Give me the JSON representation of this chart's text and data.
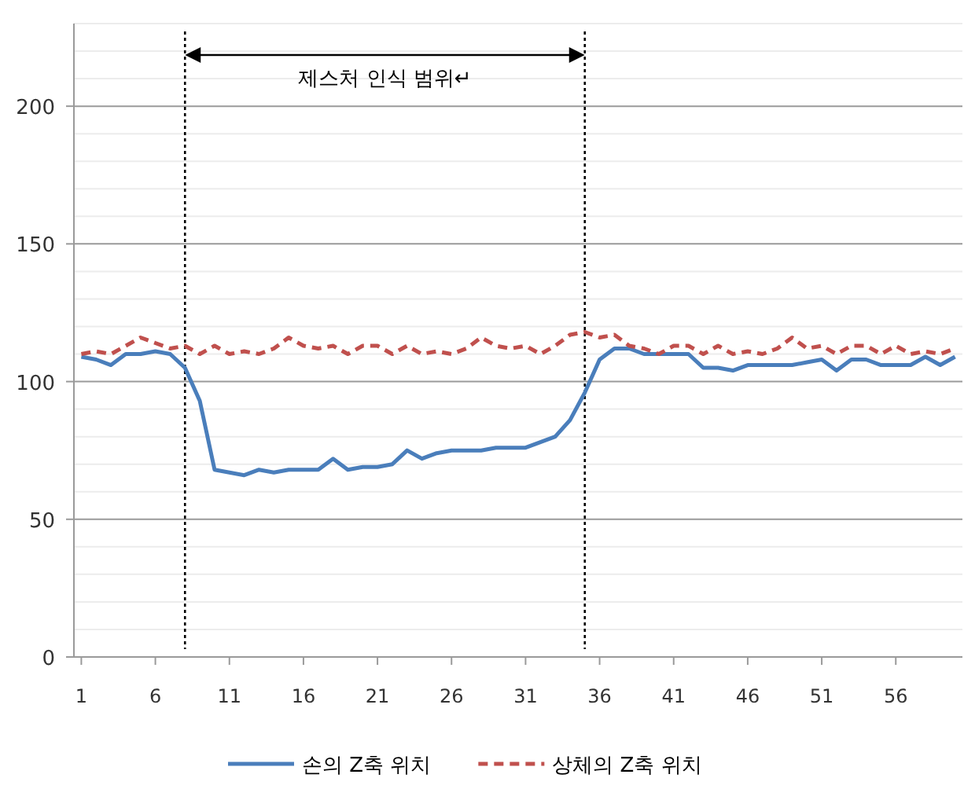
{
  "chart_data": {
    "type": "line",
    "x": [
      1,
      2,
      3,
      4,
      5,
      6,
      7,
      8,
      9,
      10,
      11,
      12,
      13,
      14,
      15,
      16,
      17,
      18,
      19,
      20,
      21,
      22,
      23,
      24,
      25,
      26,
      27,
      28,
      29,
      30,
      31,
      32,
      33,
      34,
      35,
      36,
      37,
      38,
      39,
      40,
      41,
      42,
      43,
      44,
      45,
      46,
      47,
      48,
      49,
      50,
      51,
      52,
      53,
      54,
      55,
      56,
      57,
      58,
      59,
      60
    ],
    "series": [
      {
        "name": "손의 Z축 위치",
        "color": "#4a7ebb",
        "line_style": "solid",
        "values": [
          109,
          108,
          106,
          110,
          110,
          111,
          110,
          105,
          93,
          68,
          67,
          66,
          68,
          67,
          68,
          68,
          68,
          72,
          68,
          69,
          69,
          70,
          75,
          72,
          74,
          75,
          75,
          75,
          76,
          76,
          76,
          78,
          80,
          86,
          96,
          108,
          112,
          112,
          110,
          110,
          110,
          110,
          105,
          105,
          104,
          106,
          106,
          106,
          106,
          107,
          108,
          104,
          108,
          108,
          106,
          106,
          106,
          109,
          106,
          109
        ]
      },
      {
        "name": "상체의 Z축 위치",
        "color": "#c0504d",
        "line_style": "dashed",
        "values": [
          110,
          111,
          110,
          113,
          116,
          114,
          112,
          113,
          110,
          113,
          110,
          111,
          110,
          112,
          116,
          113,
          112,
          113,
          110,
          113,
          113,
          110,
          113,
          110,
          111,
          110,
          112,
          116,
          113,
          112,
          113,
          110,
          113,
          117,
          118,
          116,
          117,
          113,
          112,
          110,
          113,
          113,
          110,
          113,
          110,
          111,
          110,
          112,
          116,
          112,
          113,
          110,
          113,
          113,
          110,
          113,
          110,
          111,
          110,
          112
        ]
      }
    ],
    "xlim": [
      0.5,
      60.5
    ],
    "xticks": [
      1,
      6,
      11,
      16,
      21,
      26,
      31,
      36,
      41,
      46,
      51,
      56
    ],
    "ylim": [
      0,
      230
    ],
    "yticks": [
      0,
      {
        "value": 10,
        "label": null
      },
      {
        "value": 20,
        "label": null
      },
      {
        "value": 30,
        "label": null
      },
      {
        "value": 40,
        "label": null
      },
      50,
      {
        "value": 60,
        "label": null
      },
      {
        "value": 70,
        "label": null
      },
      {
        "value": 80,
        "label": null
      },
      {
        "value": 90,
        "label": null
      },
      100,
      {
        "value": 110,
        "label": null
      },
      {
        "value": 120,
        "label": null
      },
      {
        "value": 130,
        "label": null
      },
      {
        "value": 140,
        "label": null
      },
      150,
      {
        "value": 160,
        "label": null
      },
      {
        "value": 170,
        "label": null
      },
      {
        "value": 180,
        "label": null
      },
      {
        "value": 190,
        "label": null
      },
      200,
      {
        "value": 210,
        "label": null
      },
      {
        "value": 220,
        "label": null
      },
      {
        "value": 230,
        "label": null
      }
    ],
    "grid": "y",
    "ref_lines": [
      {
        "axis": "x",
        "value": 8,
        "line_style": "dotted",
        "color": "#000000"
      },
      {
        "axis": "x",
        "value": 35,
        "line_style": "dotted",
        "color": "#000000"
      }
    ],
    "annotations": [
      "제스처 인식 범위↵"
    ],
    "legend": "bottom"
  }
}
